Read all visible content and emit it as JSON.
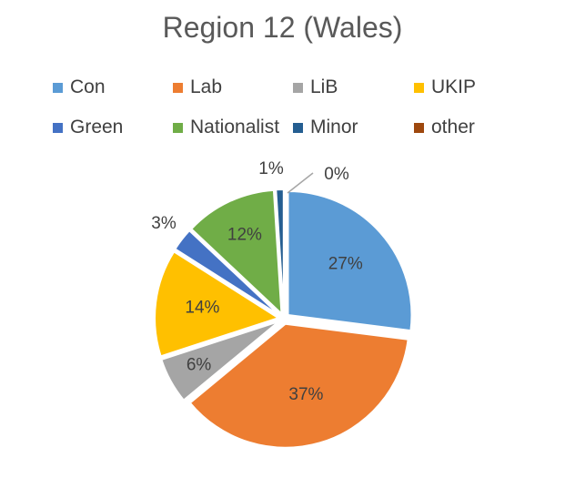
{
  "chart_data": {
    "type": "pie",
    "title": "Region 12 (Wales)",
    "legend_position": "top",
    "slices": [
      {
        "name": "Con",
        "value": 27,
        "label": "27%",
        "color": "#5B9BD5"
      },
      {
        "name": "Lab",
        "value": 37,
        "label": "37%",
        "color": "#ED7D31"
      },
      {
        "name": "LiB",
        "value": 6,
        "label": "6%",
        "color": "#A5A5A5"
      },
      {
        "name": "UKIP",
        "value": 14,
        "label": "14%",
        "color": "#FFC000"
      },
      {
        "name": "Green",
        "value": 3,
        "label": "3%",
        "color": "#4472C4"
      },
      {
        "name": "Nationalist",
        "value": 12,
        "label": "12%",
        "color": "#70AD47"
      },
      {
        "name": "Minor",
        "value": 1,
        "label": "1%",
        "color": "#255E91"
      },
      {
        "name": "other",
        "value": 0,
        "label": "0%",
        "color": "#9E480E"
      }
    ]
  }
}
